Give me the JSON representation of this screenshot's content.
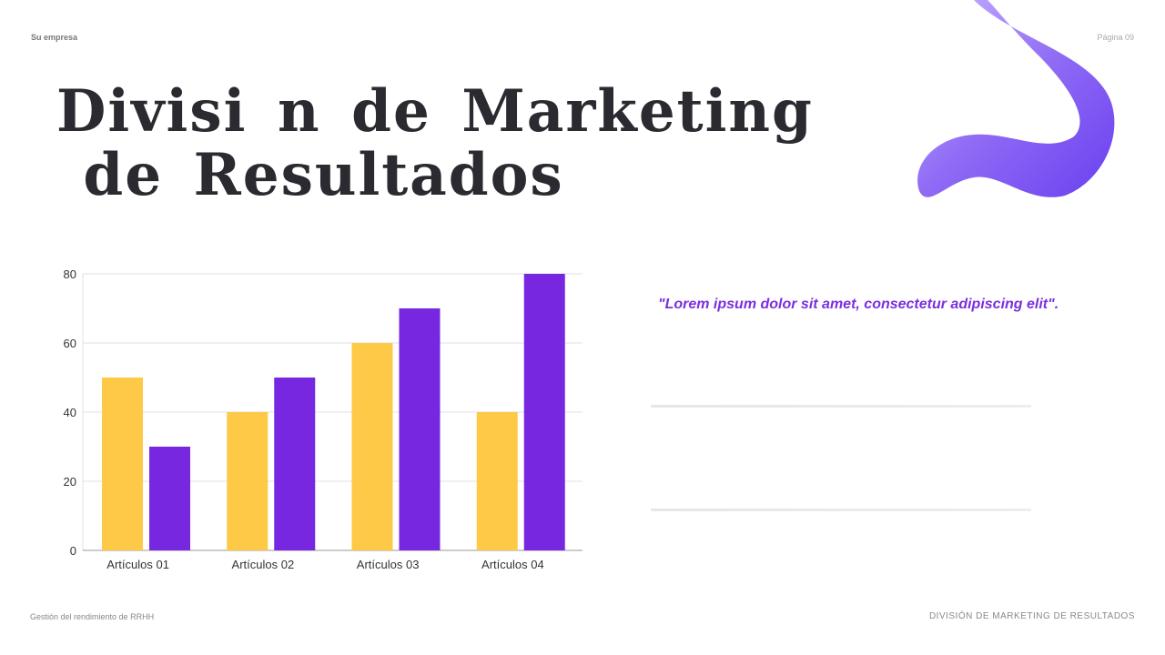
{
  "header": {
    "company": "Su empresa",
    "page": "Página 09"
  },
  "title": {
    "line1": "Divisi n de Marketing",
    "line2": "de Resultados"
  },
  "quote": "\"Lorem ipsum dolor sit amet, consectetur adipiscing elit\".",
  "footer": {
    "left": "Gestión del rendimiento de RRHH",
    "right": "DIVISIÓN DE MARKETING DE RESULTADOS"
  },
  "colors": {
    "series1": "#fdc946",
    "series2": "#7727e0",
    "accent": "#7b2fe0"
  },
  "chart_data": {
    "type": "bar",
    "categories": [
      "Artículos 01",
      "Artículos 02",
      "Artículos 03",
      "Artículos 04"
    ],
    "series": [
      {
        "values": [
          50,
          40,
          60,
          40
        ]
      },
      {
        "values": [
          30,
          50,
          70,
          80
        ]
      }
    ],
    "yticks": [
      0,
      20,
      40,
      60,
      80
    ],
    "ylim": [
      0,
      80
    ],
    "grid": true,
    "legend": "none"
  }
}
